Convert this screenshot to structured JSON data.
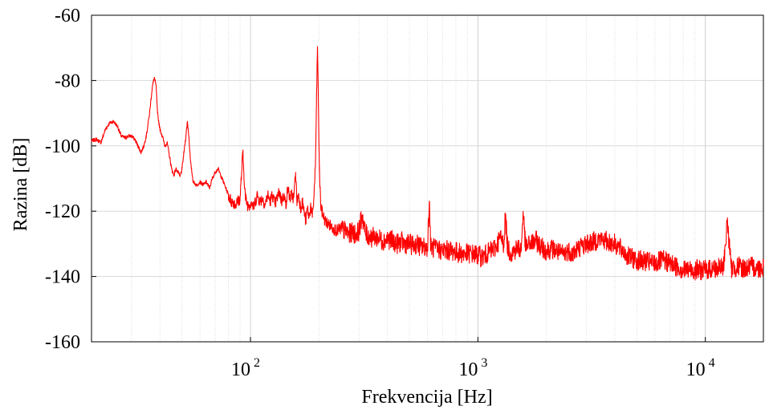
{
  "chart_data": {
    "type": "line",
    "title": "",
    "xlabel": "Frekvencija [Hz]",
    "ylabel": "Razina [dB]",
    "xscale": "log",
    "xlim": [
      20,
      18000
    ],
    "ylim": [
      -160,
      -60
    ],
    "grid": true,
    "legend": "none",
    "line_color": "#ff0000",
    "y_ticks": [
      {
        "value": -60,
        "label": "-60"
      },
      {
        "value": -80,
        "label": "-80"
      },
      {
        "value": -100,
        "label": "-100"
      },
      {
        "value": -120,
        "label": "-120"
      },
      {
        "value": -140,
        "label": "-140"
      },
      {
        "value": -160,
        "label": "-160"
      }
    ],
    "x_ticks": [
      {
        "value": 100,
        "base": "10",
        "exp": "2"
      },
      {
        "value": 1000,
        "base": "10",
        "exp": "3"
      },
      {
        "value": 10000,
        "base": "10",
        "exp": "4"
      }
    ],
    "series": [
      {
        "color": "#ff0000",
        "points": [
          [
            20,
            -98.5
          ],
          [
            21,
            -98
          ],
          [
            22,
            -99
          ],
          [
            23,
            -95
          ],
          [
            24,
            -93
          ],
          [
            25,
            -92.5
          ],
          [
            26,
            -94
          ],
          [
            27,
            -97
          ],
          [
            28,
            -97.5
          ],
          [
            29,
            -97
          ],
          [
            30,
            -97
          ],
          [
            31,
            -98
          ],
          [
            32,
            -100
          ],
          [
            33,
            -102
          ],
          [
            34,
            -100
          ],
          [
            35,
            -96
          ],
          [
            36,
            -90
          ],
          [
            37,
            -82
          ],
          [
            37.8,
            -79
          ],
          [
            38.5,
            -82
          ],
          [
            39,
            -90
          ],
          [
            40,
            -95
          ],
          [
            41,
            -97
          ],
          [
            42,
            -100
          ],
          [
            43,
            -99
          ],
          [
            44,
            -103
          ],
          [
            45,
            -107
          ],
          [
            46,
            -109
          ],
          [
            47,
            -107
          ],
          [
            48,
            -108
          ],
          [
            49,
            -109.5
          ],
          [
            50,
            -107
          ],
          [
            51,
            -102
          ],
          [
            52,
            -97
          ],
          [
            52.8,
            -92.5
          ],
          [
            53.6,
            -97
          ],
          [
            54.5,
            -105
          ],
          [
            56,
            -111
          ],
          [
            58,
            -112
          ],
          [
            60,
            -111
          ],
          [
            62,
            -112
          ],
          [
            64,
            -111
          ],
          [
            66,
            -113
          ],
          [
            68,
            -110
          ],
          [
            70,
            -108
          ],
          [
            72,
            -107
          ],
          [
            74,
            -109
          ],
          [
            76,
            -111
          ],
          [
            78,
            -113
          ],
          [
            80,
            -115
          ],
          [
            82,
            -117
          ],
          [
            84,
            -117
          ],
          [
            86,
            -118
          ],
          [
            88,
            -117
          ],
          [
            90,
            -116
          ],
          [
            91.5,
            -108
          ],
          [
            92.5,
            -102
          ],
          [
            93.5,
            -108
          ],
          [
            95,
            -116
          ],
          [
            97,
            -118
          ],
          [
            99,
            -118
          ],
          [
            101,
            -117
          ],
          [
            103,
            -119
          ],
          [
            105,
            -117
          ],
          [
            107,
            -115
          ],
          [
            110,
            -117
          ],
          [
            113,
            -116
          ],
          [
            116,
            -118
          ],
          [
            119,
            -115
          ],
          [
            122,
            -117
          ],
          [
            125,
            -115
          ],
          [
            128,
            -118
          ],
          [
            131,
            -116
          ],
          [
            134,
            -114
          ],
          [
            137,
            -117
          ],
          [
            140,
            -115
          ],
          [
            143,
            -118
          ],
          [
            146,
            -113
          ],
          [
            149,
            -116
          ],
          [
            152,
            -115
          ],
          [
            155,
            -116
          ],
          [
            158,
            -108
          ],
          [
            160,
            -117
          ],
          [
            163,
            -115
          ],
          [
            166,
            -119
          ],
          [
            169,
            -117
          ],
          [
            172,
            -120
          ],
          [
            175,
            -123
          ],
          [
            178,
            -119
          ],
          [
            181,
            -122
          ],
          [
            184,
            -118
          ],
          [
            187,
            -122
          ],
          [
            190,
            -116
          ],
          [
            193,
            -106
          ],
          [
            195,
            -88
          ],
          [
            197,
            -69.5
          ],
          [
            199,
            -88
          ],
          [
            201,
            -108
          ],
          [
            204,
            -119
          ],
          [
            208,
            -121
          ],
          [
            213,
            -123
          ],
          [
            220,
            -124
          ],
          [
            230,
            -125
          ],
          [
            240,
            -126
          ],
          [
            250,
            -125.5
          ],
          [
            260,
            -126
          ],
          [
            270,
            -127
          ],
          [
            280,
            -126.5
          ],
          [
            290,
            -127
          ],
          [
            300,
            -126
          ],
          [
            310,
            -121
          ],
          [
            320,
            -127
          ],
          [
            340,
            -128
          ],
          [
            360,
            -128
          ],
          [
            380,
            -129
          ],
          [
            400,
            -128.5
          ],
          [
            420,
            -129
          ],
          [
            440,
            -130
          ],
          [
            460,
            -129.5
          ],
          [
            480,
            -130
          ],
          [
            500,
            -130
          ],
          [
            520,
            -130.5
          ],
          [
            540,
            -130
          ],
          [
            560,
            -131
          ],
          [
            580,
            -131
          ],
          [
            600,
            -131
          ],
          [
            612,
            -117
          ],
          [
            620,
            -131
          ],
          [
            650,
            -131.5
          ],
          [
            700,
            -132
          ],
          [
            750,
            -132
          ],
          [
            800,
            -132.5
          ],
          [
            850,
            -133
          ],
          [
            900,
            -133
          ],
          [
            950,
            -133
          ],
          [
            1000,
            -133.5
          ],
          [
            1050,
            -134
          ],
          [
            1100,
            -133
          ],
          [
            1150,
            -132
          ],
          [
            1200,
            -131
          ],
          [
            1250,
            -128
          ],
          [
            1300,
            -130
          ],
          [
            1320,
            -121
          ],
          [
            1350,
            -131
          ],
          [
            1400,
            -133
          ],
          [
            1450,
            -132
          ],
          [
            1500,
            -131
          ],
          [
            1550,
            -132
          ],
          [
            1580,
            -120
          ],
          [
            1620,
            -131
          ],
          [
            1700,
            -130
          ],
          [
            1800,
            -129
          ],
          [
            1900,
            -131
          ],
          [
            2000,
            -132
          ],
          [
            2100,
            -131.5
          ],
          [
            2200,
            -132
          ],
          [
            2300,
            -133
          ],
          [
            2400,
            -133
          ],
          [
            2500,
            -132
          ],
          [
            2600,
            -133
          ],
          [
            2700,
            -132
          ],
          [
            2800,
            -131
          ],
          [
            2900,
            -130.5
          ],
          [
            3000,
            -130
          ],
          [
            3200,
            -129.5
          ],
          [
            3400,
            -128.5
          ],
          [
            3600,
            -129
          ],
          [
            3800,
            -129.5
          ],
          [
            4000,
            -130
          ],
          [
            4300,
            -132
          ],
          [
            4600,
            -134
          ],
          [
            5000,
            -135
          ],
          [
            5500,
            -135.5
          ],
          [
            6000,
            -136
          ],
          [
            6500,
            -135
          ],
          [
            7000,
            -136
          ],
          [
            7500,
            -137
          ],
          [
            8000,
            -138
          ],
          [
            9000,
            -138
          ],
          [
            10000,
            -138
          ],
          [
            11000,
            -137.5
          ],
          [
            12000,
            -137.5
          ],
          [
            12500,
            -123
          ],
          [
            13000,
            -137.5
          ],
          [
            14000,
            -137
          ],
          [
            15000,
            -137.5
          ],
          [
            16000,
            -137
          ],
          [
            17000,
            -137.5
          ],
          [
            18000,
            -137
          ]
        ]
      }
    ]
  }
}
